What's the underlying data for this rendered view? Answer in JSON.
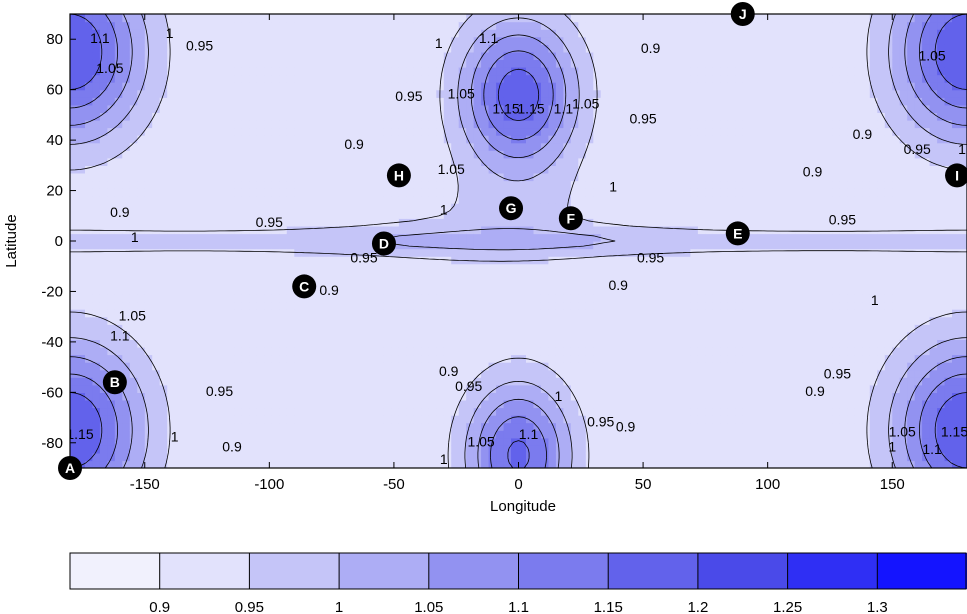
{
  "chart_data": {
    "type": "contour",
    "xlabel": "Longitude",
    "ylabel": "Latitude",
    "xlim": [
      -180,
      180
    ],
    "ylim": [
      -90,
      90
    ],
    "x_ticks": [
      -150,
      -100,
      -50,
      0,
      50,
      100,
      150
    ],
    "y_ticks": [
      -80,
      -60,
      -40,
      -20,
      0,
      20,
      40,
      60,
      80
    ],
    "grid": false,
    "colorbar": {
      "orientation": "horizontal",
      "levels": [
        0.9,
        0.95,
        1,
        1.05,
        1.1,
        1.15,
        1.2,
        1.25,
        1.3
      ],
      "tick_labels": [
        "0.9",
        "0.95",
        "1",
        "1.05",
        "1.1",
        "1.15",
        "1.2",
        "1.25",
        "1.3"
      ],
      "colors": [
        "#f1f1fd",
        "#e2e2fc",
        "#c5c5f8",
        "#adadf5",
        "#9292f1",
        "#7b7bee",
        "#6262eb",
        "#4a4ae9",
        "#2f2ff4",
        "#1414ff"
      ]
    },
    "contour_labels": [
      {
        "lon": -168,
        "lat": 80,
        "text": "1.1"
      },
      {
        "lon": -164,
        "lat": 68,
        "text": "1.05"
      },
      {
        "lon": -140,
        "lat": 82,
        "text": "1"
      },
      {
        "lon": -128,
        "lat": 77,
        "text": "0.95"
      },
      {
        "lon": -44,
        "lat": 57,
        "text": "0.95"
      },
      {
        "lon": -66,
        "lat": 38,
        "text": "0.9"
      },
      {
        "lon": -160,
        "lat": 11,
        "text": "0.9"
      },
      {
        "lon": -100,
        "lat": 7,
        "text": "0.95"
      },
      {
        "lon": -154,
        "lat": 1,
        "text": "1"
      },
      {
        "lon": -155,
        "lat": -30,
        "text": "1.05"
      },
      {
        "lon": -160,
        "lat": -38,
        "text": "1.1"
      },
      {
        "lon": -176,
        "lat": -77,
        "text": "1.15"
      },
      {
        "lon": -120,
        "lat": -60,
        "text": "0.95"
      },
      {
        "lon": -138,
        "lat": -78,
        "text": "1"
      },
      {
        "lon": -115,
        "lat": -82,
        "text": "0.9"
      },
      {
        "lon": -32,
        "lat": 78,
        "text": "1"
      },
      {
        "lon": -23,
        "lat": 58,
        "text": "1.05"
      },
      {
        "lon": -27,
        "lat": 28,
        "text": "1.05"
      },
      {
        "lon": -12,
        "lat": 80,
        "text": "1.1"
      },
      {
        "lon": -5,
        "lat": 52,
        "text": "1.15"
      },
      {
        "lon": 5,
        "lat": 52,
        "text": "1.15"
      },
      {
        "lon": 18,
        "lat": 52,
        "text": "1.1"
      },
      {
        "lon": 27,
        "lat": 54,
        "text": "1.05"
      },
      {
        "lon": 50,
        "lat": 48,
        "text": "0.95"
      },
      {
        "lon": 53,
        "lat": 76,
        "text": "0.9"
      },
      {
        "lon": 38,
        "lat": 21,
        "text": "1"
      },
      {
        "lon": -30,
        "lat": 12,
        "text": "1"
      },
      {
        "lon": -62,
        "lat": -7,
        "text": "0.95"
      },
      {
        "lon": -76,
        "lat": -20,
        "text": "0.9"
      },
      {
        "lon": 53,
        "lat": -7,
        "text": "0.95"
      },
      {
        "lon": 40,
        "lat": -18,
        "text": "0.9"
      },
      {
        "lon": -28,
        "lat": -52,
        "text": "0.9"
      },
      {
        "lon": -20,
        "lat": -58,
        "text": "0.95"
      },
      {
        "lon": 16,
        "lat": -62,
        "text": "1"
      },
      {
        "lon": 33,
        "lat": -72,
        "text": "0.95"
      },
      {
        "lon": 43,
        "lat": -74,
        "text": "0.9"
      },
      {
        "lon": -15,
        "lat": -80,
        "text": "1.05"
      },
      {
        "lon": 4,
        "lat": -77,
        "text": "1.1"
      },
      {
        "lon": -30,
        "lat": -87,
        "text": "1"
      },
      {
        "lon": 118,
        "lat": 27,
        "text": "0.9"
      },
      {
        "lon": 130,
        "lat": 8,
        "text": "0.95"
      },
      {
        "lon": 138,
        "lat": 42,
        "text": "0.9"
      },
      {
        "lon": 160,
        "lat": 36,
        "text": "0.95"
      },
      {
        "lon": 166,
        "lat": 73,
        "text": "1.05"
      },
      {
        "lon": 178,
        "lat": 36,
        "text": "1"
      },
      {
        "lon": 143,
        "lat": -24,
        "text": "1"
      },
      {
        "lon": 128,
        "lat": -53,
        "text": "0.95"
      },
      {
        "lon": 119,
        "lat": -60,
        "text": "0.9"
      },
      {
        "lon": 154,
        "lat": -76,
        "text": "1.05"
      },
      {
        "lon": 150,
        "lat": -82,
        "text": "1"
      },
      {
        "lon": 166,
        "lat": -83,
        "text": "1.1"
      },
      {
        "lon": 175,
        "lat": -76,
        "text": "1.15"
      }
    ],
    "markers": [
      {
        "label": "A",
        "lon": -180,
        "lat": -90
      },
      {
        "label": "B",
        "lon": -162,
        "lat": -56
      },
      {
        "label": "C",
        "lon": -86,
        "lat": -18
      },
      {
        "label": "D",
        "lon": -54,
        "lat": -1
      },
      {
        "label": "E",
        "lon": 88,
        "lat": 3
      },
      {
        "label": "F",
        "lon": 21,
        "lat": 9
      },
      {
        "label": "G",
        "lon": -3,
        "lat": 13
      },
      {
        "label": "H",
        "lon": -48,
        "lat": 26
      },
      {
        "label": "I",
        "lon": 176,
        "lat": 26
      },
      {
        "label": "J",
        "lon": 90,
        "lat": 90
      }
    ]
  }
}
